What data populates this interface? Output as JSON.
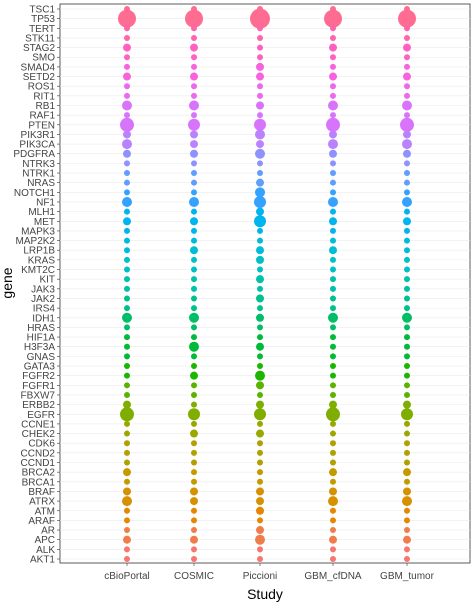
{
  "chart_data": {
    "type": "scatter",
    "title": "",
    "xlabel": "Study",
    "ylabel": "gene",
    "grid": true,
    "legend": "none",
    "studies": [
      "cBioPortal",
      "COSMIC",
      "Piccioni",
      "GBM_cfDNA",
      "GBM_tumor"
    ],
    "genes": [
      "TSC1",
      "TP53",
      "TERT",
      "STK11",
      "STAG2",
      "SMO",
      "SMAD4",
      "SETD2",
      "ROS1",
      "RIT1",
      "RB1",
      "RAF1",
      "PTEN",
      "PIK3R1",
      "PIK3CA",
      "PDGFRA",
      "NTRK3",
      "NTRK1",
      "NRAS",
      "NOTCH1",
      "NF1",
      "MLH1",
      "MET",
      "MAPK3",
      "MAP2K2",
      "LRP1B",
      "KRAS",
      "KMT2C",
      "KIT",
      "JAK3",
      "JAK2",
      "IRS4",
      "IDH1",
      "HRAS",
      "HIF1A",
      "H3F3A",
      "GNAS",
      "GATA3",
      "FGFR2",
      "FGFR1",
      "FBXW7",
      "ERBB2",
      "EGFR",
      "CCNE1",
      "CHEK2",
      "CDK6",
      "CCND2",
      "CCND1",
      "BRCA2",
      "BRCA1",
      "BRAF",
      "ATRX",
      "ATM",
      "ARAF",
      "AR",
      "APC",
      "ALK",
      "AKT1"
    ],
    "colors": [
      "#f8766d",
      "#f17c4a",
      "#e58700",
      "#d59100",
      "#c49a00",
      "#b0a100",
      "#99a800",
      "#7fae00",
      "#5bb300",
      "#1bb700",
      "#00ba38",
      "#00be67",
      "#00c08b",
      "#00c1a9",
      "#00c0c4",
      "#00bcd8",
      "#00b4ef",
      "#35a2ff",
      "#619cff",
      "#8f91ff",
      "#b983ff",
      "#d874fc",
      "#ec69ef",
      "#f962dd",
      "#ff61c3",
      "#ff65a9",
      "#ff6c91"
    ],
    "sizes": [
      [
        3,
        3,
        3,
        3,
        3
      ],
      [
        9,
        9,
        10,
        9,
        9
      ],
      [
        3,
        3,
        3,
        3,
        3
      ],
      [
        3,
        3,
        3,
        3,
        3
      ],
      [
        4,
        4,
        3,
        4,
        4
      ],
      [
        3,
        3,
        3,
        3,
        3
      ],
      [
        3,
        3,
        4,
        3,
        3
      ],
      [
        4,
        4,
        4,
        4,
        4
      ],
      [
        3,
        3,
        3,
        3,
        3
      ],
      [
        3,
        3,
        3,
        3,
        3
      ],
      [
        5,
        5,
        4,
        5,
        5
      ],
      [
        3,
        3,
        3,
        3,
        3
      ],
      [
        7,
        6,
        6,
        7,
        7
      ],
      [
        4,
        4,
        5,
        4,
        4
      ],
      [
        5,
        4,
        4,
        5,
        5
      ],
      [
        4,
        4,
        5,
        4,
        4
      ],
      [
        3,
        3,
        3,
        3,
        3
      ],
      [
        3,
        3,
        3,
        3,
        3
      ],
      [
        3,
        3,
        4,
        3,
        3
      ],
      [
        3,
        3,
        5,
        3,
        3
      ],
      [
        5,
        5,
        6,
        5,
        5
      ],
      [
        3,
        3,
        4,
        3,
        3
      ],
      [
        4,
        4,
        6,
        4,
        4
      ],
      [
        3,
        3,
        3,
        3,
        3
      ],
      [
        3,
        3,
        3,
        3,
        3
      ],
      [
        3,
        4,
        4,
        4,
        3
      ],
      [
        3,
        3,
        4,
        3,
        3
      ],
      [
        3,
        3,
        3,
        3,
        3
      ],
      [
        3,
        3,
        4,
        3,
        3
      ],
      [
        3,
        3,
        3,
        3,
        3
      ],
      [
        3,
        3,
        4,
        3,
        3
      ],
      [
        3,
        3,
        3,
        3,
        3
      ],
      [
        5,
        5,
        4,
        5,
        5
      ],
      [
        3,
        3,
        3,
        3,
        3
      ],
      [
        3,
        3,
        3,
        3,
        3
      ],
      [
        3,
        5,
        4,
        3,
        3
      ],
      [
        3,
        3,
        3,
        3,
        3
      ],
      [
        3,
        3,
        3,
        3,
        3
      ],
      [
        3,
        4,
        5,
        3,
        3
      ],
      [
        3,
        3,
        4,
        3,
        3
      ],
      [
        3,
        3,
        3,
        3,
        3
      ],
      [
        4,
        3,
        4,
        4,
        4
      ],
      [
        7,
        6,
        6,
        7,
        6
      ],
      [
        3,
        3,
        3,
        3,
        3
      ],
      [
        3,
        4,
        4,
        3,
        3
      ],
      [
        3,
        3,
        3,
        3,
        3
      ],
      [
        3,
        3,
        3,
        3,
        3
      ],
      [
        3,
        3,
        3,
        3,
        3
      ],
      [
        4,
        3,
        3,
        4,
        4
      ],
      [
        3,
        3,
        3,
        3,
        3
      ],
      [
        4,
        4,
        4,
        4,
        4
      ],
      [
        5,
        4,
        4,
        5,
        5
      ],
      [
        3,
        3,
        4,
        3,
        3
      ],
      [
        3,
        3,
        3,
        3,
        3
      ],
      [
        3,
        3,
        4,
        3,
        3
      ],
      [
        4,
        4,
        5,
        4,
        4
      ],
      [
        3,
        3,
        3,
        3,
        3
      ],
      [
        3,
        3,
        3,
        3,
        3
      ]
    ]
  }
}
